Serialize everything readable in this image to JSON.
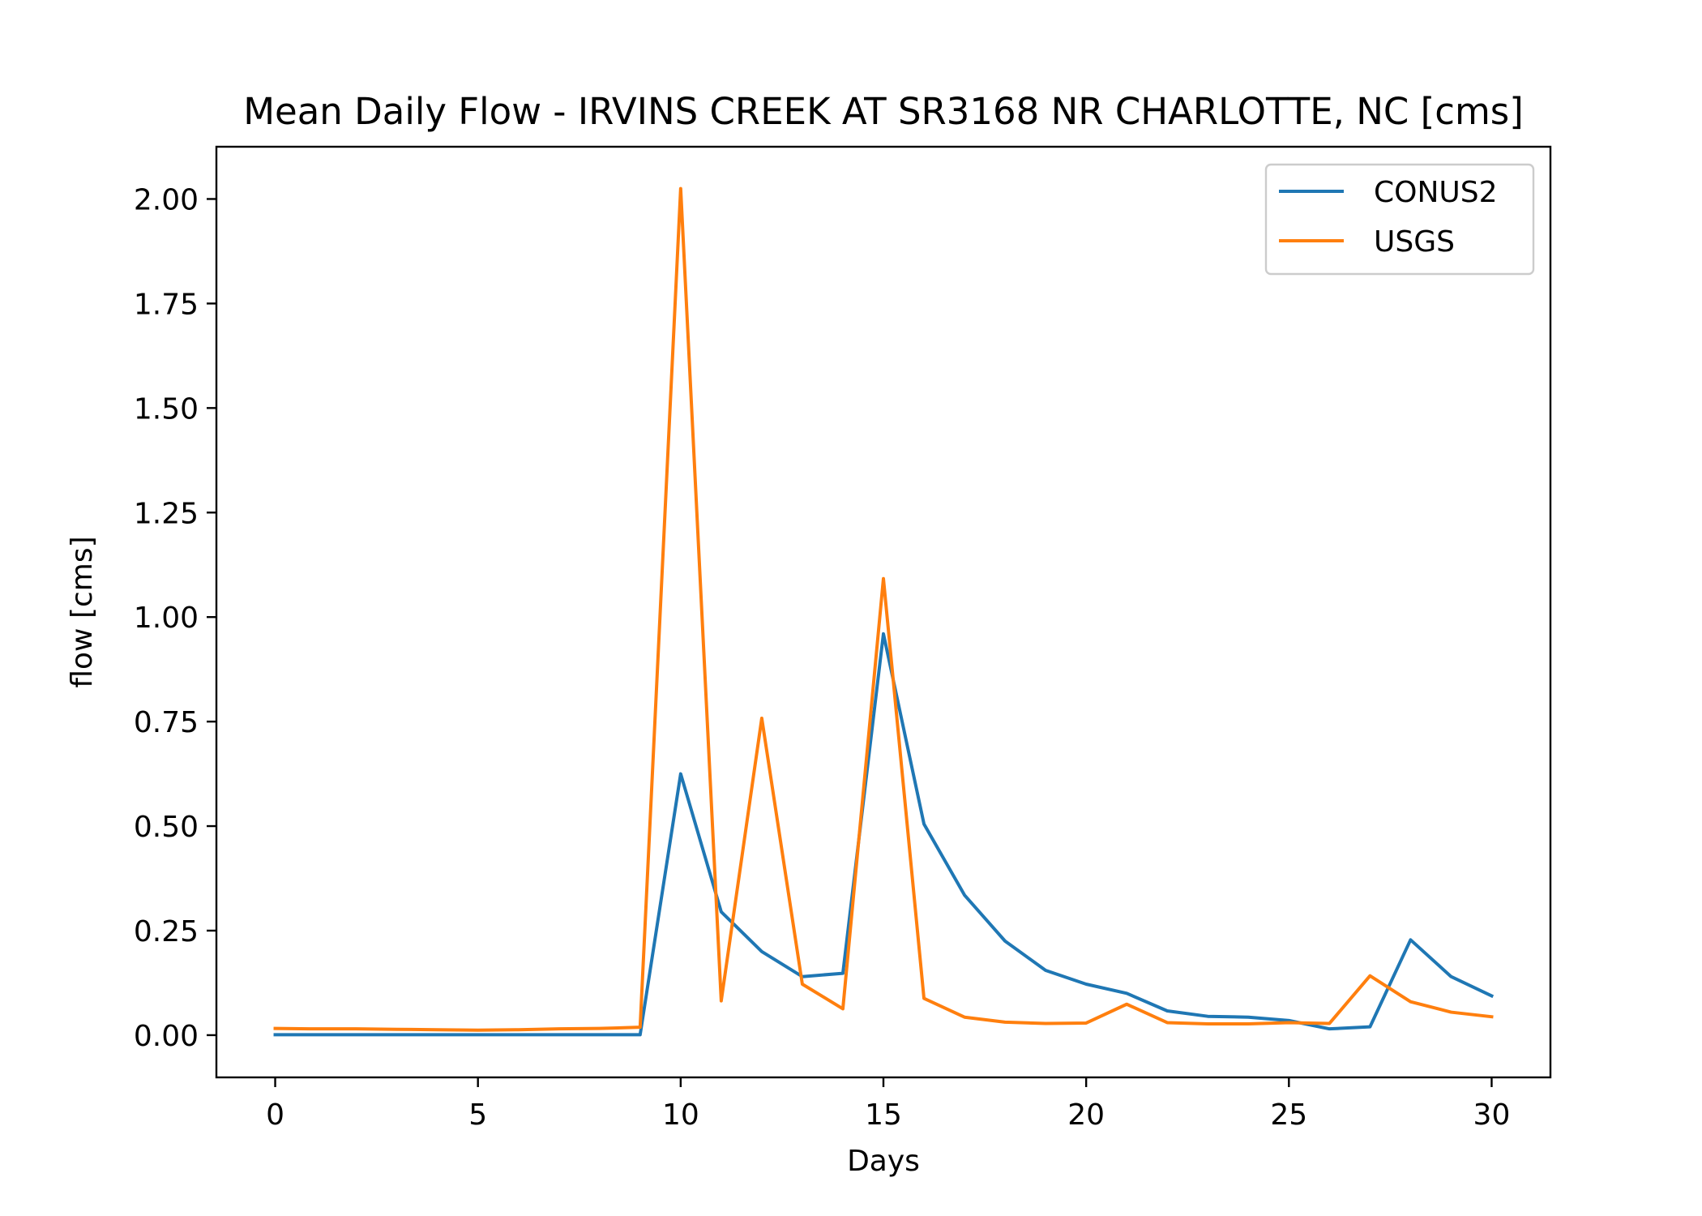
{
  "chart_data": {
    "type": "line",
    "title": "Mean Daily Flow - IRVINS CREEK AT SR3168 NR CHARLOTTE, NC [cms]",
    "xlabel": "Days",
    "ylabel": "flow [cms]",
    "xlim": [
      -1.45,
      31.45
    ],
    "ylim": [
      -0.101,
      2.125
    ],
    "xticks": [
      0,
      5,
      10,
      15,
      20,
      25,
      30
    ],
    "xtick_labels": [
      "0",
      "5",
      "10",
      "15",
      "20",
      "25",
      "30"
    ],
    "yticks": [
      0,
      0.25,
      0.5,
      0.75,
      1.0,
      1.25,
      1.5,
      1.75,
      2.0
    ],
    "ytick_labels": [
      "0.00",
      "0.25",
      "0.50",
      "0.75",
      "1.00",
      "1.25",
      "1.50",
      "1.75",
      "2.00"
    ],
    "grid": false,
    "legend_position": "top-right",
    "x": [
      0,
      1,
      2,
      3,
      4,
      5,
      6,
      7,
      8,
      9,
      10,
      11,
      12,
      13,
      14,
      15,
      16,
      17,
      18,
      19,
      20,
      21,
      22,
      23,
      24,
      25,
      26,
      27,
      28,
      29,
      30
    ],
    "series": [
      {
        "name": "CONUS2",
        "color": "#1f77b4",
        "values": [
          0.001,
          0.001,
          0.001,
          0.001,
          0.001,
          0.001,
          0.001,
          0.001,
          0.001,
          0.001,
          0.625,
          0.295,
          0.2,
          0.14,
          0.148,
          0.96,
          0.505,
          0.335,
          0.225,
          0.155,
          0.122,
          0.1,
          0.058,
          0.045,
          0.043,
          0.035,
          0.015,
          0.02,
          0.228,
          0.14,
          0.094
        ]
      },
      {
        "name": "USGS",
        "color": "#ff7f0e",
        "values": [
          0.016,
          0.015,
          0.015,
          0.014,
          0.013,
          0.012,
          0.013,
          0.015,
          0.016,
          0.019,
          2.025,
          0.082,
          0.758,
          0.122,
          0.063,
          1.092,
          0.088,
          0.043,
          0.031,
          0.028,
          0.029,
          0.074,
          0.03,
          0.027,
          0.027,
          0.03,
          0.028,
          0.142,
          0.08,
          0.055,
          0.044
        ]
      }
    ]
  }
}
